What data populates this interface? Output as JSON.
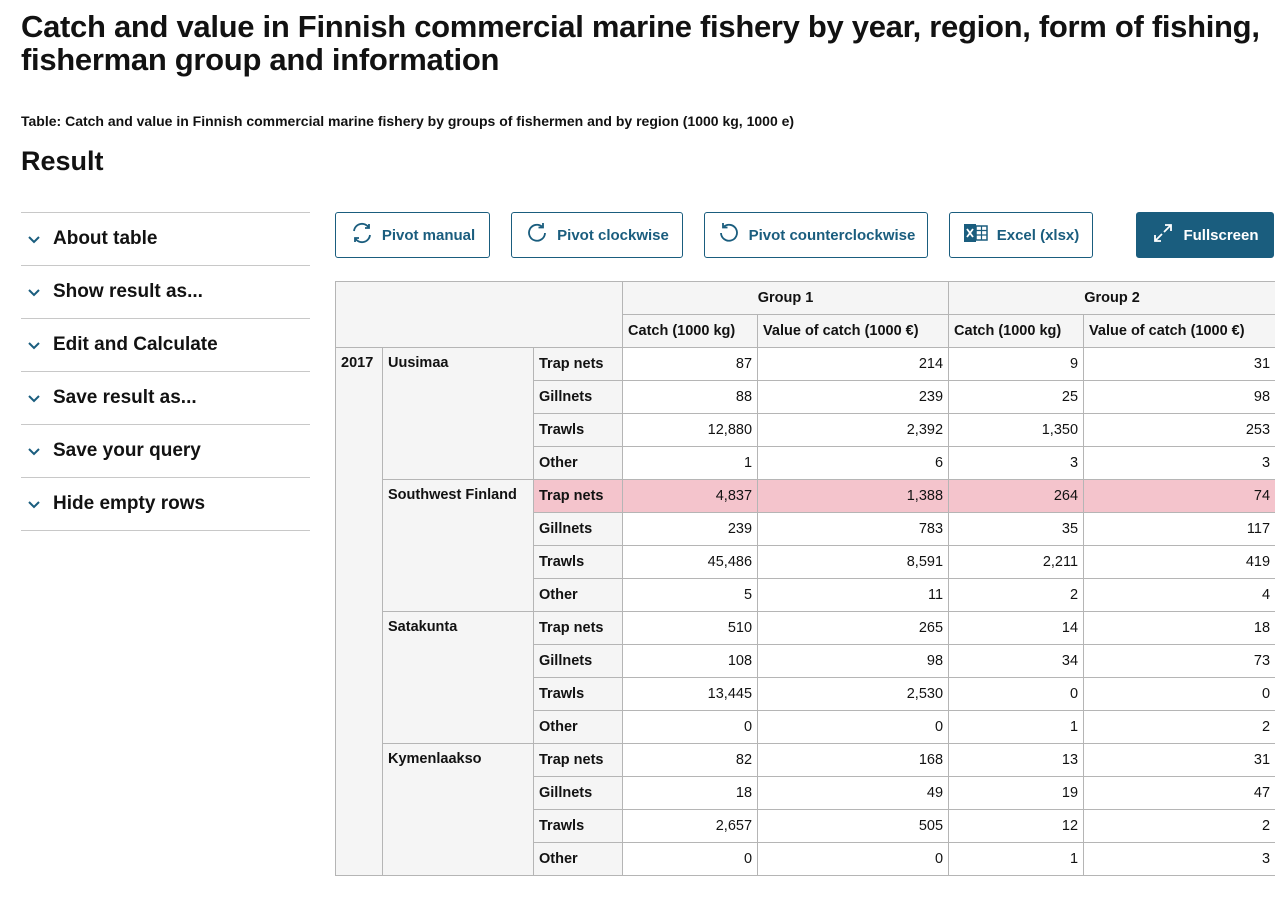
{
  "page_title": "Catch and value in Finnish commercial marine fishery by year, region, form of fishing, fisherman group and information",
  "table_caption": "Table: Catch and value in Finnish commercial marine fishery by groups of fishermen and by region (1000 kg, 1000 e)",
  "result_heading": "Result",
  "sidebar": {
    "items": [
      {
        "label": "About table",
        "icon": "chevron-down-icon"
      },
      {
        "label": "Show result as...",
        "icon": "chevron-down-icon"
      },
      {
        "label": "Edit and Calculate",
        "icon": "chevron-down-icon"
      },
      {
        "label": "Save result as...",
        "icon": "chevron-down-icon"
      },
      {
        "label": "Save your query",
        "icon": "chevron-down-icon"
      },
      {
        "label": "Hide empty rows",
        "icon": "chevron-down-icon"
      }
    ]
  },
  "toolbar": {
    "pivot_manual": "Pivot manual",
    "pivot_clockwise": "Pivot clockwise",
    "pivot_counterclockwise": "Pivot counterclockwise",
    "excel": "Excel (xlsx)",
    "fullscreen": "Fullscreen"
  },
  "colors": {
    "accent": "#1a5d7e",
    "highlight_row": "#f4c4cc",
    "header_bg": "#f5f5f5",
    "border": "#b5b5b5"
  },
  "table": {
    "groups": [
      "Group 1",
      "Group 2"
    ],
    "measures": [
      "Catch (1000 kg)",
      "Value of catch (1000 €)",
      "Catch (1000 kg)",
      "Value of catch (1000 €)"
    ],
    "year": "2017",
    "regions": [
      {
        "name": "Uusimaa",
        "rows": [
          {
            "gear": "Trap nets",
            "values": [
              "87",
              "214",
              "9",
              "31"
            ]
          },
          {
            "gear": "Gillnets",
            "values": [
              "88",
              "239",
              "25",
              "98"
            ]
          },
          {
            "gear": "Trawls",
            "values": [
              "12,880",
              "2,392",
              "1,350",
              "253"
            ]
          },
          {
            "gear": "Other",
            "values": [
              "1",
              "6",
              "3",
              "3"
            ]
          }
        ]
      },
      {
        "name": "Southwest Finland",
        "rows": [
          {
            "gear": "Trap nets",
            "values": [
              "4,837",
              "1,388",
              "264",
              "74"
            ],
            "highlighted": true
          },
          {
            "gear": "Gillnets",
            "values": [
              "239",
              "783",
              "35",
              "117"
            ]
          },
          {
            "gear": "Trawls",
            "values": [
              "45,486",
              "8,591",
              "2,211",
              "419"
            ]
          },
          {
            "gear": "Other",
            "values": [
              "5",
              "11",
              "2",
              "4"
            ]
          }
        ]
      },
      {
        "name": "Satakunta",
        "rows": [
          {
            "gear": "Trap nets",
            "values": [
              "510",
              "265",
              "14",
              "18"
            ]
          },
          {
            "gear": "Gillnets",
            "values": [
              "108",
              "98",
              "34",
              "73"
            ]
          },
          {
            "gear": "Trawls",
            "values": [
              "13,445",
              "2,530",
              "0",
              "0"
            ]
          },
          {
            "gear": "Other",
            "values": [
              "0",
              "0",
              "1",
              "2"
            ]
          }
        ]
      },
      {
        "name": "Kymenlaakso",
        "rows": [
          {
            "gear": "Trap nets",
            "values": [
              "82",
              "168",
              "13",
              "31"
            ]
          },
          {
            "gear": "Gillnets",
            "values": [
              "18",
              "49",
              "19",
              "47"
            ]
          },
          {
            "gear": "Trawls",
            "values": [
              "2,657",
              "505",
              "12",
              "2"
            ]
          },
          {
            "gear": "Other",
            "values": [
              "0",
              "0",
              "1",
              "3"
            ]
          }
        ]
      }
    ]
  }
}
